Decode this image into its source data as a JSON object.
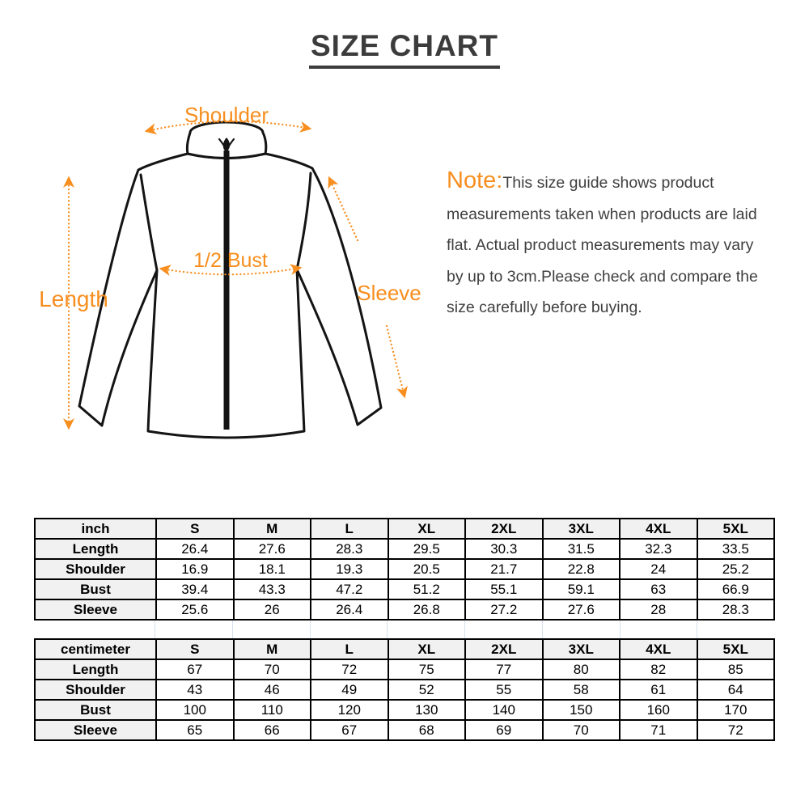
{
  "title": "SIZE CHART",
  "accent_color": "#F78E1E",
  "diagram": {
    "labels": {
      "shoulder": "Shoulder",
      "length": "Length",
      "half_bust": "1/2 Bust",
      "sleeve": "Sleeve"
    }
  },
  "note": {
    "prefix": "Note:",
    "text": "This size guide shows product measurements taken when products are laid flat. Actual product measurements may vary by up to 3cm.Please check and compare the size carefully before buying."
  },
  "size_tables": [
    {
      "unit": "inch",
      "columns": [
        "S",
        "M",
        "L",
        "XL",
        "2XL",
        "3XL",
        "4XL",
        "5XL"
      ],
      "rows": [
        {
          "label": "Length",
          "values": [
            "26.4",
            "27.6",
            "28.3",
            "29.5",
            "30.3",
            "31.5",
            "32.3",
            "33.5"
          ]
        },
        {
          "label": "Shoulder",
          "values": [
            "16.9",
            "18.1",
            "19.3",
            "20.5",
            "21.7",
            "22.8",
            "24",
            "25.2"
          ]
        },
        {
          "label": "Bust",
          "values": [
            "39.4",
            "43.3",
            "47.2",
            "51.2",
            "55.1",
            "59.1",
            "63",
            "66.9"
          ]
        },
        {
          "label": "Sleeve",
          "values": [
            "25.6",
            "26",
            "26.4",
            "26.8",
            "27.2",
            "27.6",
            "28",
            "28.3"
          ]
        }
      ]
    },
    {
      "unit": "centimeter",
      "columns": [
        "S",
        "M",
        "L",
        "XL",
        "2XL",
        "3XL",
        "4XL",
        "5XL"
      ],
      "rows": [
        {
          "label": "Length",
          "values": [
            "67",
            "70",
            "72",
            "75",
            "77",
            "80",
            "82",
            "85"
          ]
        },
        {
          "label": "Shoulder",
          "values": [
            "43",
            "46",
            "49",
            "52",
            "55",
            "58",
            "61",
            "64"
          ]
        },
        {
          "label": "Bust",
          "values": [
            "100",
            "110",
            "120",
            "130",
            "140",
            "150",
            "160",
            "170"
          ]
        },
        {
          "label": "Sleeve",
          "values": [
            "65",
            "66",
            "67",
            "68",
            "69",
            "70",
            "71",
            "72"
          ]
        }
      ]
    }
  ]
}
